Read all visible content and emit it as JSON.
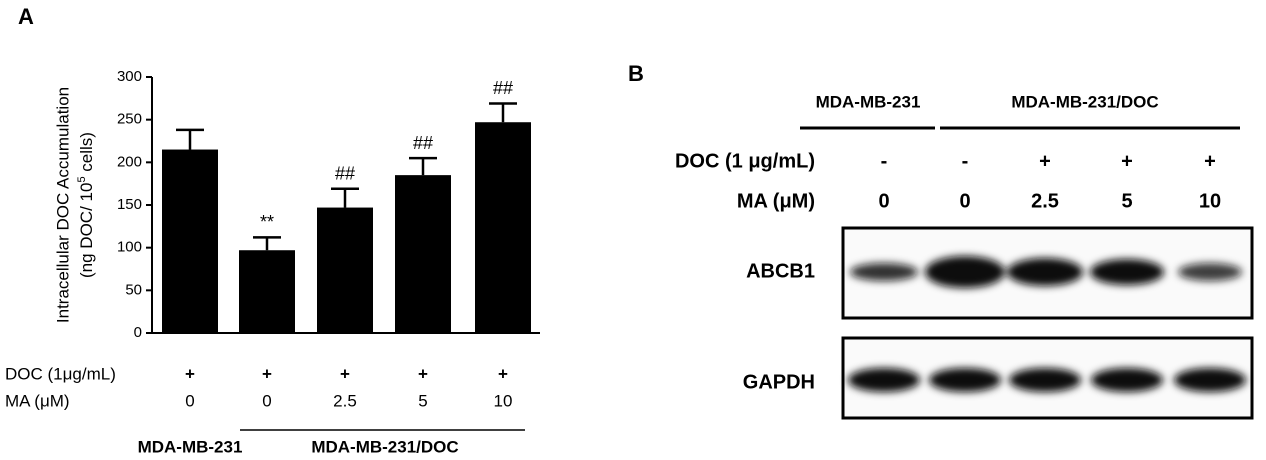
{
  "panel_labels": [
    "A",
    "B"
  ],
  "chart_data": {
    "type": "bar",
    "y_label": {
      "line1": "Intracellular DOC Accumulation",
      "line2_pre": "(ng DOC/ 10",
      "line2_sup": "5",
      "line2_post": " cells)"
    },
    "categories": [
      null,
      null,
      null,
      null,
      null
    ],
    "values": [
      215,
      97,
      147,
      185,
      247
    ],
    "errors": [
      23,
      15,
      22,
      20,
      22
    ],
    "annotations": [
      null,
      "**",
      "##",
      "##",
      "##"
    ],
    "color": "#000000",
    "ylim": [
      0,
      300
    ],
    "yticks": [
      0,
      50,
      100,
      150,
      200,
      250,
      300
    ],
    "grid": false,
    "conditions": [
      {
        "label": "DOC (1μg/mL)",
        "values": [
          "+",
          "+",
          "+",
          "+",
          "+"
        ]
      },
      {
        "label": "MA (μM)",
        "values": [
          "0",
          "0",
          "2.5",
          "5",
          "10"
        ]
      }
    ],
    "cell_lines": [
      "MDA-MB-231",
      "MDA-MB-231/DOC"
    ]
  },
  "blot": {
    "cell_lines": [
      "MDA-MB-231",
      "MDA-MB-231/DOC"
    ],
    "conditions": [
      {
        "label": "DOC (1 μg/mL)",
        "values": [
          "-",
          "-",
          "+",
          "+",
          "+"
        ]
      },
      {
        "label": "MA (μM)",
        "values": [
          "0",
          "0",
          "2.5",
          "5",
          "10"
        ]
      }
    ],
    "proteins": [
      "ABCB1",
      "GAPDH"
    ]
  }
}
